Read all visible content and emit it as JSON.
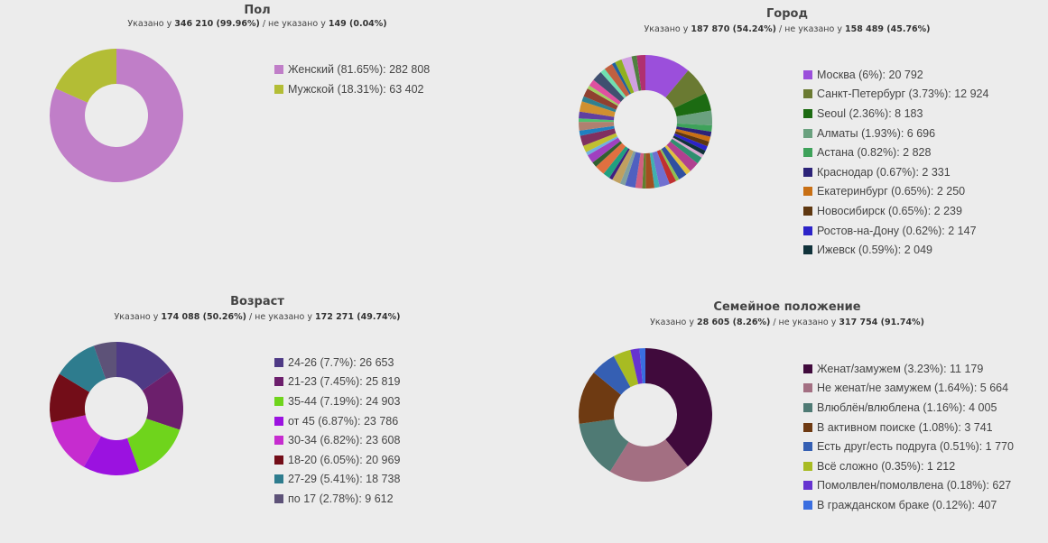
{
  "chart_data": [
    {
      "type": "pie",
      "id": "gender",
      "title": "Пол",
      "subtitle": {
        "pre": "Указано у ",
        "specified": "346 210 (99.96%)",
        "mid": " / не указано у ",
        "unspecified": "149 (0.04%)"
      },
      "slices": [
        {
          "label": "Женский (81.65%): 282 808",
          "value": 282808,
          "color": "#c07ec8"
        },
        {
          "label": "Мужской (18.31%): 63 402",
          "value": 63402,
          "color": "#b3bd35"
        }
      ]
    },
    {
      "type": "pie",
      "id": "city",
      "title": "Город",
      "subtitle": {
        "pre": "Указано у ",
        "specified": "187 870 (54.24%)",
        "mid": " / не указано у ",
        "unspecified": "158 489 (45.76%)"
      },
      "slices": [
        {
          "label": "Москва (6%): 20 792",
          "value": 20792,
          "color": "#9b4fdb"
        },
        {
          "label": "Санкт-Петербург (3.73%): 12 924",
          "value": 12924,
          "color": "#6a7a32"
        },
        {
          "label": "Seoul (2.36%): 8 183",
          "value": 8183,
          "color": "#1c6b12"
        },
        {
          "label": "Алматы (1.93%): 6 696",
          "value": 6696,
          "color": "#6aa17f"
        },
        {
          "label": "Астана (0.82%): 2 828",
          "value": 2828,
          "color": "#3ea25a"
        },
        {
          "label": "Краснодар (0.67%): 2 331",
          "value": 2331,
          "color": "#2c2378"
        },
        {
          "label": "Екатеринбург (0.65%): 2 250",
          "value": 2250,
          "color": "#c86f14"
        },
        {
          "label": "Новосибирск (0.65%): 2 239",
          "value": 2239,
          "color": "#5e3710"
        },
        {
          "label": "Ростов-на-Дону (0.62%): 2 147",
          "value": 2147,
          "color": "#2c23c8"
        },
        {
          "label": "Ижевск (0.59%): 2 049",
          "value": 2049,
          "color": "#10323a"
        }
      ],
      "others_total": 125431
    },
    {
      "type": "pie",
      "id": "age",
      "title": "Возраст",
      "subtitle": {
        "pre": "Указано у ",
        "specified": "174 088 (50.26%)",
        "mid": " / не указано у ",
        "unspecified": "172 271 (49.74%)"
      },
      "slices": [
        {
          "label": "24-26 (7.7%): 26 653",
          "value": 26653,
          "color": "#4e3a85"
        },
        {
          "label": "21-23 (7.45%): 25 819",
          "value": 25819,
          "color": "#6c1f6c"
        },
        {
          "label": "35-44 (7.19%): 24 903",
          "value": 24903,
          "color": "#6fd41c"
        },
        {
          "label": "от 45 (6.87%): 23 786",
          "value": 23786,
          "color": "#9b12e0"
        },
        {
          "label": "30-34 (6.82%): 23 608",
          "value": 23608,
          "color": "#c62ccf"
        },
        {
          "label": "18-20 (6.05%): 20 969",
          "value": 20969,
          "color": "#730d18"
        },
        {
          "label": "27-29 (5.41%): 18 738",
          "value": 18738,
          "color": "#2e7c8e"
        },
        {
          "label": "по 17 (2.78%): 9 612",
          "value": 9612,
          "color": "#5d5278"
        }
      ]
    },
    {
      "type": "pie",
      "id": "marital",
      "title": "Семейное положение",
      "subtitle": {
        "pre": "Указано у ",
        "specified": "28 605 (8.26%)",
        "mid": " / не указано у ",
        "unspecified": "317 754 (91.74%)"
      },
      "slices": [
        {
          "label": "Женат/замужем (3.23%): 11 179",
          "value": 11179,
          "color": "#400a3c"
        },
        {
          "label": "Не женат/не замужем (1.64%): 5 664",
          "value": 5664,
          "color": "#a36f82"
        },
        {
          "label": "Влюблён/влюблена (1.16%): 4 005",
          "value": 4005,
          "color": "#4f7a74"
        },
        {
          "label": "В активном поиске (1.08%): 3 741",
          "value": 3741,
          "color": "#6e3a12"
        },
        {
          "label": "Есть друг/есть подруга (0.51%): 1 770",
          "value": 1770,
          "color": "#355fb3"
        },
        {
          "label": "Всё сложно (0.35%): 1 212",
          "value": 1212,
          "color": "#a8bb22"
        },
        {
          "label": "Помолвлен/помолвлена (0.18%): 627",
          "value": 627,
          "color": "#6633d0"
        },
        {
          "label": "В гражданском браке (0.12%): 407",
          "value": 407,
          "color": "#3a6ee0"
        }
      ]
    }
  ],
  "city_other_colors": [
    "#d8a8d0",
    "#2f8f6f",
    "#b04090",
    "#e0c040",
    "#3050a0",
    "#90c050",
    "#c03030",
    "#7070d0",
    "#40b0b0",
    "#a05020",
    "#608030",
    "#d06080",
    "#5060c0",
    "#80a0a0",
    "#c0a060",
    "#402080",
    "#20a080",
    "#e07040",
    "#306030",
    "#a040c0",
    "#70b0e0",
    "#c0c030",
    "#803060",
    "#2080c0",
    "#b08070",
    "#50c070",
    "#6040a0",
    "#d09030",
    "#308090",
    "#904030",
    "#a0d060",
    "#e050a0",
    "#405070",
    "#70e0b0",
    "#c06040",
    "#2060a0",
    "#90b020",
    "#d0a0e0",
    "#508040",
    "#b03070"
  ]
}
